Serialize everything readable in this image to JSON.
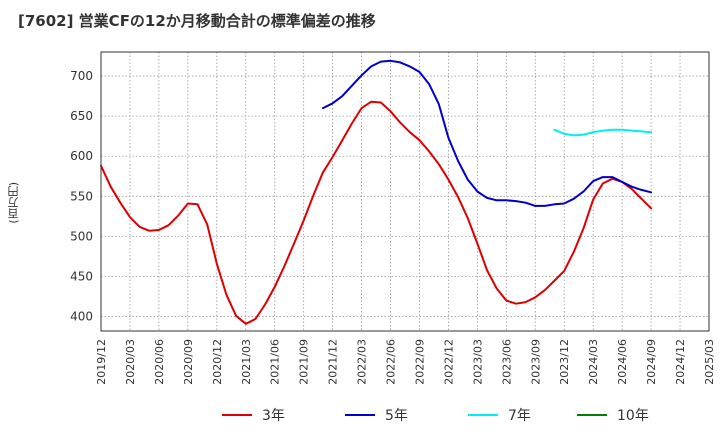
{
  "chart_data": {
    "type": "line",
    "title": "[7602]  営業CFの12か月移動合計の標準偏差の推移",
    "ylabel": "(百万円)",
    "xlabel": "",
    "ylim": [
      382,
      730
    ],
    "yticks": [
      400,
      450,
      500,
      550,
      600,
      650,
      700
    ],
    "grid": "dotted",
    "legend_position": "bottom",
    "x_tick_labels": [
      "2019/12",
      "2020/03",
      "2020/06",
      "2020/09",
      "2020/12",
      "2021/03",
      "2021/06",
      "2021/09",
      "2021/12",
      "2022/03",
      "2022/06",
      "2022/09",
      "2022/12",
      "2023/03",
      "2023/06",
      "2023/09",
      "2023/12",
      "2024/03",
      "2024/06",
      "2024/09",
      "2024/12",
      "2025/03"
    ],
    "series": [
      {
        "name": "3年",
        "color": "#dd0000",
        "x": [
          "2019/12",
          "2020/01",
          "2020/02",
          "2020/03",
          "2020/04",
          "2020/05",
          "2020/06",
          "2020/07",
          "2020/08",
          "2020/09",
          "2020/10",
          "2020/11",
          "2020/12",
          "2021/01",
          "2021/02",
          "2021/03",
          "2021/04",
          "2021/05",
          "2021/06",
          "2021/07",
          "2021/08",
          "2021/09",
          "2021/10",
          "2021/11",
          "2021/12",
          "2022/01",
          "2022/02",
          "2022/03",
          "2022/04",
          "2022/05",
          "2022/06",
          "2022/07",
          "2022/08",
          "2022/09",
          "2022/10",
          "2022/11",
          "2022/12",
          "2023/01",
          "2023/02",
          "2023/03",
          "2023/04",
          "2023/05",
          "2023/06",
          "2023/07",
          "2023/08",
          "2023/09",
          "2023/10",
          "2023/11",
          "2023/12",
          "2024/01",
          "2024/02",
          "2024/03",
          "2024/04",
          "2024/05",
          "2024/06",
          "2024/07",
          "2024/08",
          "2024/09"
        ],
        "values": [
          588,
          562,
          542,
          524,
          512,
          507,
          508,
          514,
          526,
          541,
          540,
          515,
          466,
          427,
          401,
          391,
          397,
          415,
          437,
          463,
          491,
          520,
          551,
          580,
          599,
          620,
          641,
          660,
          668,
          667,
          656,
          642,
          630,
          620,
          606,
          590,
          571,
          549,
          523,
          491,
          458,
          435,
          420,
          416,
          418,
          424,
          433,
          445,
          457,
          481,
          510,
          546,
          566,
          572,
          568,
          559,
          547,
          535
        ]
      },
      {
        "name": "5年",
        "color": "#0000cc",
        "x": [
          "2021/11",
          "2021/12",
          "2022/01",
          "2022/02",
          "2022/03",
          "2022/04",
          "2022/05",
          "2022/06",
          "2022/07",
          "2022/08",
          "2022/09",
          "2022/10",
          "2022/11",
          "2022/12",
          "2023/01",
          "2023/02",
          "2023/03",
          "2023/04",
          "2023/05",
          "2023/06",
          "2023/07",
          "2023/08",
          "2023/09",
          "2023/10",
          "2023/11",
          "2023/12",
          "2024/01",
          "2024/02",
          "2024/03",
          "2024/04",
          "2024/05",
          "2024/06",
          "2024/07",
          "2024/08",
          "2024/09"
        ],
        "values": [
          660,
          666,
          675,
          688,
          701,
          712,
          718,
          719,
          717,
          712,
          705,
          690,
          665,
          623,
          594,
          571,
          556,
          548,
          545,
          545,
          544,
          542,
          538,
          538,
          540,
          541,
          547,
          556,
          569,
          574,
          574,
          568,
          562,
          558,
          555
        ]
      },
      {
        "name": "7年",
        "color": "#00eeee",
        "x": [
          "2023/11",
          "2023/12",
          "2024/01",
          "2024/02",
          "2024/03",
          "2024/04",
          "2024/05",
          "2024/06",
          "2024/07",
          "2024/08",
          "2024/09"
        ],
        "values": [
          633,
          628,
          626,
          627,
          630,
          632,
          633,
          633,
          632,
          631,
          630
        ]
      },
      {
        "name": "10年",
        "color": "#008000",
        "x": [],
        "values": []
      }
    ]
  }
}
